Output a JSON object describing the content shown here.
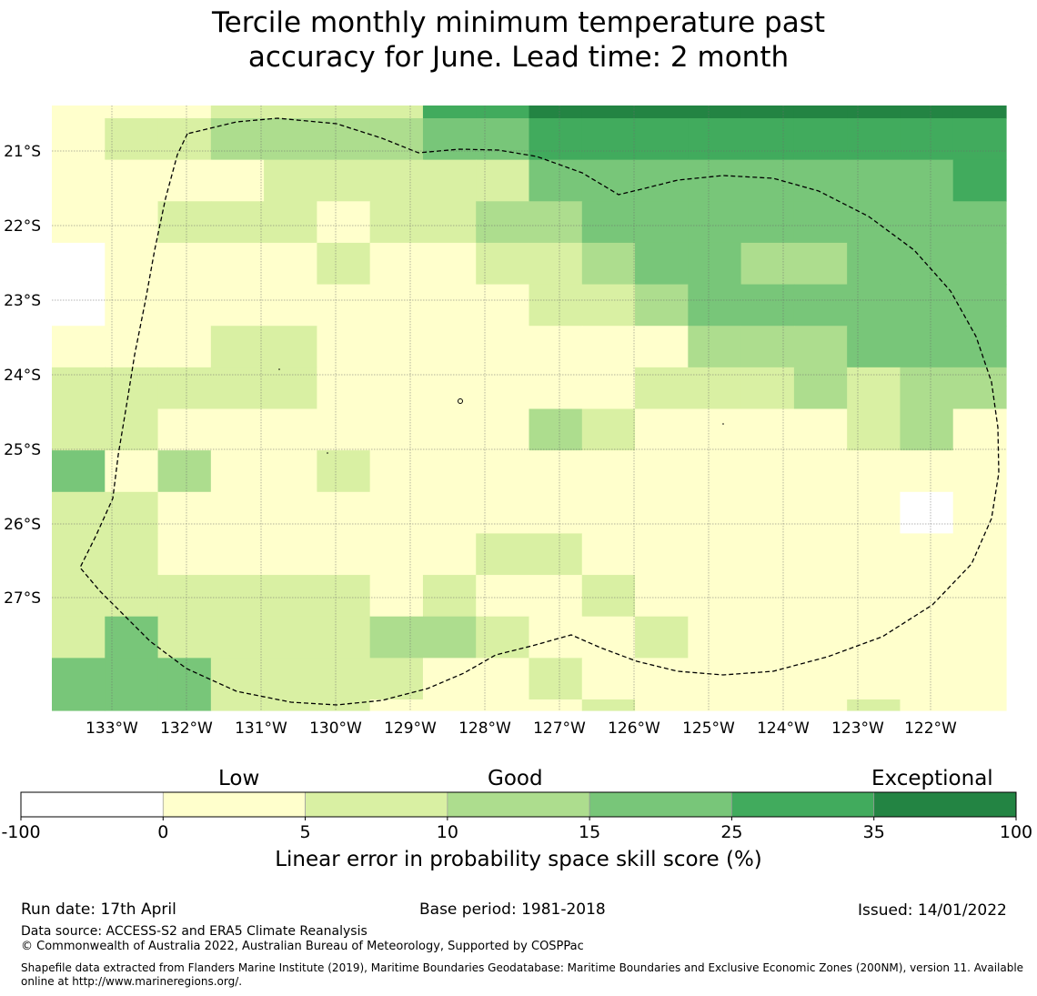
{
  "title": {
    "line1": "Tercile monthly minimum temperature past",
    "line2": "accuracy for June. Lead time: 2 month"
  },
  "map": {
    "lon_labels": [
      "133°W",
      "132°W",
      "131°W",
      "130°W",
      "129°W",
      "128°W",
      "127°W",
      "126°W",
      "125°W",
      "124°W",
      "123°W",
      "122°W"
    ],
    "lat_labels": [
      "21°S",
      "22°S",
      "23°S",
      "24°S",
      "25°S",
      "26°S",
      "27°S"
    ],
    "grid_rows": [
      "111222255666666666",
      "122333344555555555",
      "111122222444444445",
      "112221223344444444",
      "011112112234433444",
      "011111111223444444",
      "111221111111333444",
      "222221111112223233",
      "221111111321111231",
      "413112111111111111",
      "221111111111111101",
      "221111112211111111",
      "222222121121111111",
      "242222332112111111",
      "444222211211111111",
      "444222111121111211"
    ],
    "cell_note": "Skill category per cell: 0=-100..0, 1=0..5, 2=5..10, 3=10..15, 4=15..25, 5=25..35, 6=35..100"
  },
  "colorbar": {
    "heads": [
      "Low",
      "Good",
      "Exceptional"
    ],
    "ticks": [
      "-100",
      "0",
      "5",
      "10",
      "15",
      "25",
      "35",
      "100"
    ],
    "colors": [
      "#ffffff",
      "#ffffcc",
      "#d9f0a3",
      "#addd8e",
      "#78c679",
      "#41ab5d",
      "#238443"
    ],
    "label": "Linear error in probability space skill score (%)"
  },
  "footer": {
    "run_date": "Run date: 17th April",
    "base_period": "Base period: 1981-2018",
    "issued": "Issued: 14/01/2022",
    "data_source": "Data source: ACCESS-S2 and ERA5 Climate Reanalysis",
    "copyright": "© Commonwealth of Australia 2022, Australian Bureau of Meteorology, Supported by COSPPac",
    "shapefile": "Shapefile data extracted from Flanders Marine Institute (2019), Maritime Boundaries Geodatabase: Maritime Boundaries and Exclusive Economic Zones (200NM), version 11. Available online at http://www.marineregions.org/."
  }
}
